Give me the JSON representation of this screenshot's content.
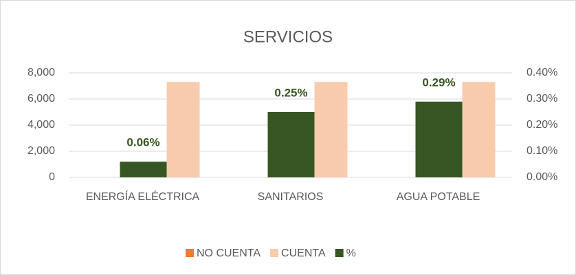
{
  "chart_data": {
    "type": "bar",
    "title": "SERVICIOS",
    "categories": [
      "ENERGÍA ELÉCTRICA",
      "SANITARIOS",
      "AGUA POTABLE"
    ],
    "series": [
      {
        "name": "NO CUENTA",
        "color": "#ed7d31",
        "values": [
          0,
          0,
          0
        ]
      },
      {
        "name": "CUENTA",
        "color": "#f8cbad",
        "values": [
          7300,
          7300,
          7300
        ]
      },
      {
        "name": "%",
        "color": "#375623",
        "axis": "y2",
        "values": [
          0.06,
          0.25,
          0.29
        ],
        "value_labels": [
          "0.06%",
          "0.25%",
          "0.29%"
        ]
      }
    ],
    "ylim": [
      0,
      8000
    ],
    "yticks": [
      0,
      {
        "value": 2000,
        "label": "2,000"
      },
      {
        "value": 4000,
        "label": "4,000"
      },
      {
        "value": 6000,
        "label": "6,000"
      },
      {
        "value": 8000,
        "label": "8,000"
      }
    ],
    "y2lim": [
      0,
      0.4
    ],
    "y2ticks": [
      {
        "value": 0,
        "label": "0.00%"
      },
      {
        "value": 0.1,
        "label": "0.10%"
      },
      {
        "value": 0.2,
        "label": "0.20%"
      },
      {
        "value": 0.3,
        "label": "0.30%"
      },
      {
        "value": 0.4,
        "label": "0.40%"
      }
    ],
    "grid": true,
    "legend": "bottom"
  }
}
